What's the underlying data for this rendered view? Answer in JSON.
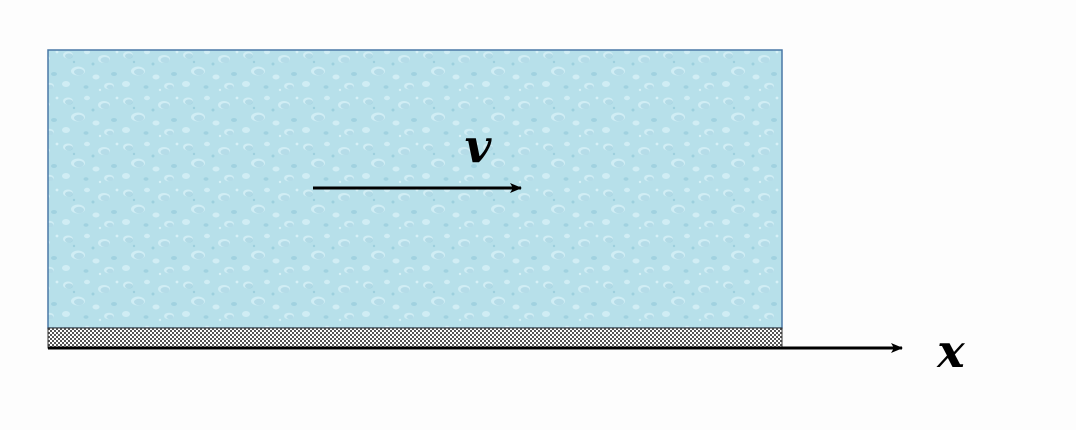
{
  "diagram": {
    "velocity_label": "v",
    "axis_label": "x"
  },
  "colors": {
    "fluid_fill": "#b7e0ea",
    "fluid_border": "#4a78a6",
    "droplet_light": "#d6f0f6",
    "droplet_dark": "#8cc4d6",
    "wall_fill": "#555555",
    "arrow": "#000000",
    "text": "#000000"
  }
}
